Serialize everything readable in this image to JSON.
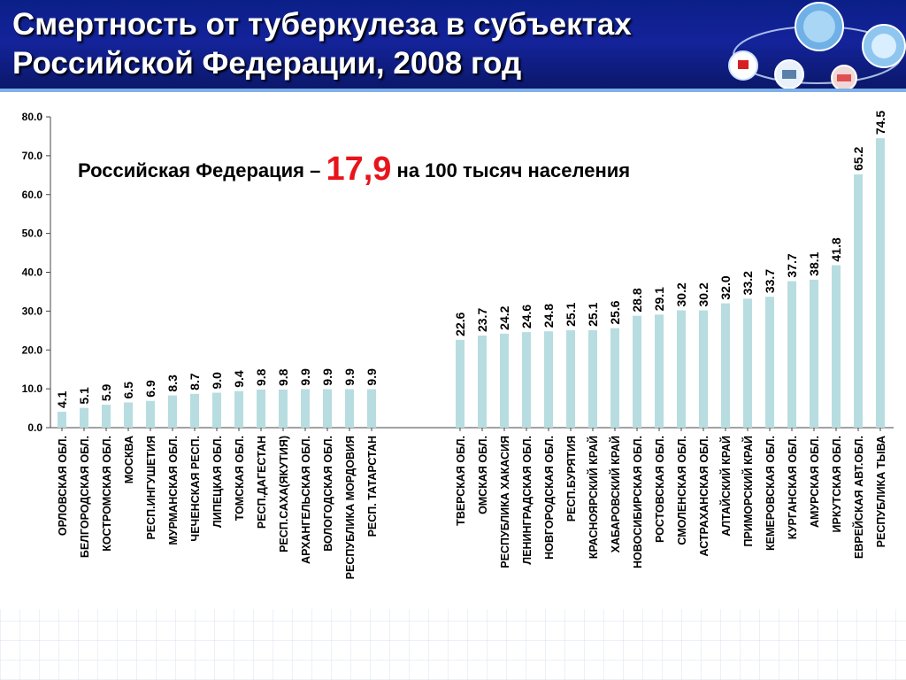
{
  "header": {
    "title_line1": "Смертность от туберкулеза в субъектах",
    "title_line2": "Российской Федерации, 2008 год"
  },
  "annotation": {
    "prefix": "Российская Федерация – ",
    "value": "17,9",
    "suffix": " на 100 тысяч населения"
  },
  "chart_data": {
    "type": "bar",
    "title": "",
    "xlabel": "",
    "ylabel": "",
    "ylim": [
      0,
      80
    ],
    "yticks": [
      "0.0",
      "10.0",
      "20.0",
      "30.0",
      "40.0",
      "50.0",
      "60.0",
      "70.0",
      "80.0"
    ],
    "grid": false,
    "bar_color": "#b7dde0",
    "groups": [
      {
        "categories": [
          "ОРЛОВСКАЯ ОБЛ.",
          "БЕЛГОРОДСКАЯ ОБЛ.",
          "КОСТРОМСКАЯ ОБЛ.",
          "МОСКВА",
          "РЕСП.ИНГУШЕТИЯ",
          "МУРМАНСКАЯ ОБЛ.",
          "ЧЕЧЕНСКАЯ РЕСП.",
          "ЛИПЕЦКАЯ ОБЛ.",
          "ТОМСКАЯ ОБЛ.",
          "РЕСП.ДАГЕСТАН",
          "РЕСП.САХА(ЯКУТИЯ)",
          "АРХАНГЕЛЬСКАЯ ОБЛ.",
          "ВОЛОГОДСКАЯ ОБЛ.",
          "РЕСПУБЛИКА МОРДОВИЯ",
          "РЕСП. ТАТАРСТАН"
        ],
        "values": [
          4.1,
          5.1,
          5.9,
          6.5,
          6.9,
          8.3,
          8.7,
          9.0,
          9.4,
          9.8,
          9.8,
          9.9,
          9.9,
          9.9,
          9.9
        ],
        "labels": [
          "4.1",
          "5.1",
          "5.9",
          "6.5",
          "6.9",
          "8.3",
          "8.7",
          "9.0",
          "9.4",
          "9.8",
          "9.8",
          "9.9",
          "9.9",
          "9.9",
          "9.9"
        ]
      },
      {
        "categories": [
          "ТВЕРСКАЯ ОБЛ.",
          "ОМСКАЯ ОБЛ.",
          "РЕСПУБЛИКА ХАКАСИЯ",
          "ЛЕНИНГРАДСКАЯ ОБЛ.",
          "НОВГОРОДСКАЯ ОБЛ.",
          "РЕСП.БУРЯТИЯ",
          "КРАСНОЯРСКИЙ КРАЙ",
          "ХАБАРОВСКИЙ КРАЙ",
          "НОВОСИБИРСКАЯ ОБЛ.",
          "РОСТОВСКАЯ ОБЛ.",
          "СМОЛЕНСКАЯ ОБЛ.",
          "АСТРАХАНСКАЯ ОБЛ.",
          "АЛТАЙСКИЙ КРАЙ",
          "ПРИМОРСКИЙ КРАЙ",
          "КЕМЕРОВСКАЯ ОБЛ.",
          "КУРГАНСКАЯ ОБЛ.",
          "АМУРСКАЯ ОБЛ.",
          "ИРКУТСКАЯ ОБЛ.",
          "ЕВРЕЙСКАЯ АВТ.ОБЛ.",
          "РЕСПУБЛИКА ТЫВА"
        ],
        "values": [
          22.6,
          23.7,
          24.2,
          24.6,
          24.8,
          25.1,
          25.1,
          25.6,
          28.8,
          29.1,
          30.2,
          30.2,
          32.0,
          33.2,
          33.7,
          37.7,
          38.1,
          41.8,
          65.2,
          74.5
        ],
        "labels": [
          "22.6",
          "23.7",
          "24.2",
          "24.6",
          "24.8",
          "25.1",
          "25.1",
          "25.6",
          "28.8",
          "29.1",
          "30.2",
          "30.2",
          "32.0",
          "33.2",
          "33.7",
          "37.7",
          "38.1",
          "41.8",
          "65.2",
          "74.5"
        ]
      }
    ]
  }
}
